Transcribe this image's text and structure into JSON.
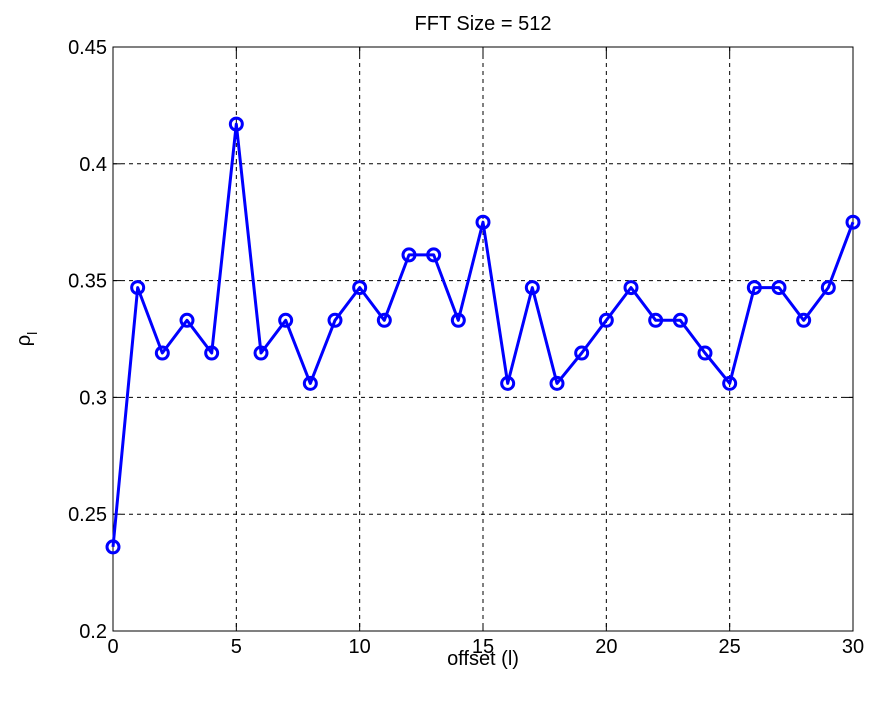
{
  "chart_data": {
    "type": "line",
    "title": "FFT Size = 512",
    "xlabel": "offset (l)",
    "ylabel": "ρ",
    "ylabel_sub": "l",
    "xlim": [
      0,
      30
    ],
    "ylim": [
      0.2,
      0.45
    ],
    "xticks": [
      0,
      5,
      10,
      15,
      20,
      25,
      30
    ],
    "xtick_labels": [
      "0",
      "5",
      "10",
      "15",
      "20",
      "25",
      "30"
    ],
    "yticks": [
      0.2,
      0.25,
      0.3,
      0.35,
      0.4,
      0.45
    ],
    "ytick_labels": [
      "0.2",
      "0.25",
      "0.3",
      "0.35",
      "0.4",
      "0.45"
    ],
    "grid": true,
    "marker": "circle",
    "color": "#0000ff",
    "x": [
      0,
      1,
      2,
      3,
      4,
      5,
      6,
      7,
      8,
      9,
      10,
      11,
      12,
      13,
      14,
      15,
      16,
      17,
      18,
      19,
      20,
      21,
      22,
      23,
      24,
      25,
      26,
      27,
      28,
      29,
      30
    ],
    "y": [
      0.236,
      0.347,
      0.319,
      0.333,
      0.319,
      0.417,
      0.319,
      0.333,
      0.306,
      0.333,
      0.347,
      0.333,
      0.361,
      0.361,
      0.333,
      0.375,
      0.306,
      0.347,
      0.306,
      0.319,
      0.333,
      0.347,
      0.333,
      0.333,
      0.319,
      0.306,
      0.347,
      0.347,
      0.333,
      0.347,
      0.375
    ]
  }
}
